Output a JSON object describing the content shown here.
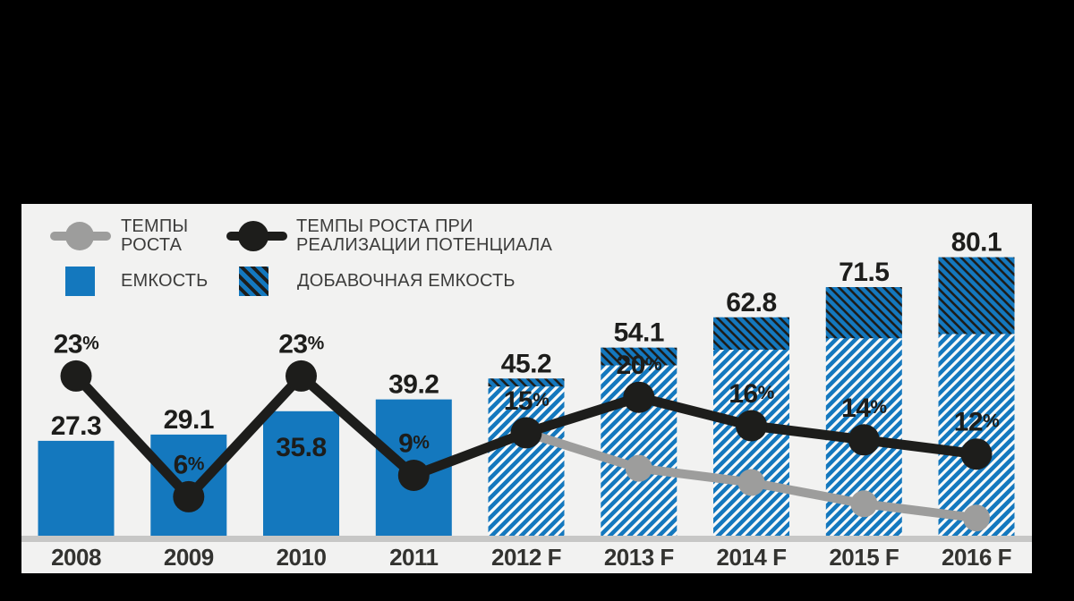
{
  "colors": {
    "blue": "#1478be",
    "dark": "#1d1d1b",
    "gray": "#9d9d9c",
    "plot_bg": "#f2f2f1",
    "outside_bg": "#000000",
    "baseline": "#c7c7c6",
    "hatch_white": "#fafaf9",
    "legend_text": "#3c3c3b",
    "year_text": "#333330"
  },
  "legend": {
    "growth_rate": {
      "line1": "ТЕМПЫ",
      "line2": "РОСТА"
    },
    "growth_rate_potential": {
      "line1": "ТЕМПЫ РОСТА ПРИ",
      "line2": "РЕАЛИЗАЦИИ ПОТЕНЦИАЛА"
    },
    "capacity": {
      "label": "ЕМКОСТЬ"
    },
    "additional_capacity": {
      "label": "ДОБАВОЧНАЯ ЕМКОСТЬ"
    }
  },
  "chart_data": {
    "type": "bar",
    "subtype": "bar-line-combo",
    "categories": [
      "2008",
      "2009",
      "2010",
      "2011",
      "2012 F",
      "2013 F",
      "2014 F",
      "2015 F",
      "2016 F"
    ],
    "series": [
      {
        "name": "ЕМКОСТЬ",
        "type": "bar",
        "values": [
          27.3,
          29.1,
          35.8,
          39.2,
          45.2,
          54.1,
          62.8,
          71.5,
          80.1
        ],
        "labels": [
          "27.3",
          "29.1",
          "35.8",
          "39.2",
          "45.2",
          "54.1",
          "62.8",
          "71.5",
          "80.1"
        ],
        "hatched": [
          false,
          false,
          false,
          false,
          true,
          true,
          true,
          true,
          true
        ],
        "label_inside": [
          false,
          false,
          true,
          false,
          false,
          false,
          false,
          false,
          false
        ]
      },
      {
        "name": "ДОБАВОЧНАЯ ЕМКОСТЬ",
        "type": "bar-top-segment",
        "estimated": true,
        "values": [
          0,
          0,
          0,
          0,
          2.3,
          5.1,
          9.3,
          14.7,
          22.1
        ]
      },
      {
        "name": "ТЕМПЫ РОСТА ПРИ РЕАЛИЗАЦИИ ПОТЕНЦИАЛА",
        "type": "line",
        "color": "dark",
        "values_pct": [
          23,
          6,
          23,
          9,
          15,
          20,
          16,
          14,
          12
        ],
        "labels": [
          "23%",
          "6%",
          "23%",
          "9%",
          "15%",
          "20%",
          "16%",
          "14%",
          "12%"
        ]
      },
      {
        "name": "ТЕМПЫ РОСТА",
        "type": "line",
        "color": "gray",
        "estimated": true,
        "values_pct": [
          null,
          null,
          null,
          null,
          15,
          10,
          8,
          5,
          3
        ],
        "labels": []
      }
    ],
    "legend_position": "top-left",
    "grid": false,
    "ylim_units": [
      0,
      88
    ],
    "ylim_pct": [
      0,
      47
    ]
  }
}
